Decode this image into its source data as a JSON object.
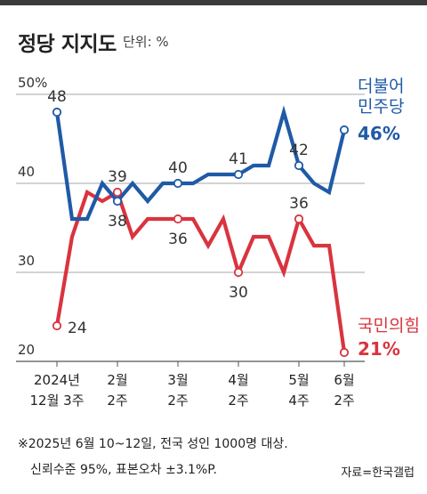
{
  "header": {
    "title": "정당 지지도",
    "unit": "단위: %"
  },
  "footnote": {
    "line1": "※2025년 6월 10~12일, 전국 성인 1000명 대상.",
    "line2": "신뢰수준 95%, 표본오차 ±3.1%P."
  },
  "source": "자료=한국갤럽",
  "colors": {
    "democratic": "#1f5aa6",
    "ppp": "#d9343e",
    "grid": "#8a8a8a"
  },
  "chart_data": {
    "type": "line",
    "ylim": [
      20,
      50
    ],
    "yticks": [
      {
        "value": 50,
        "label": "50%"
      },
      {
        "value": 40,
        "label": "40"
      },
      {
        "value": 30,
        "label": "30"
      },
      {
        "value": 20,
        "label": "20"
      }
    ],
    "xticks": [
      {
        "index": 0,
        "lines": [
          "2024년",
          "12월 3주"
        ]
      },
      {
        "index": 4,
        "lines": [
          "2월",
          "2주"
        ]
      },
      {
        "index": 8,
        "lines": [
          "3월",
          "2주"
        ]
      },
      {
        "index": 12,
        "lines": [
          "4월",
          "2주"
        ]
      },
      {
        "index": 16,
        "lines": [
          "5월",
          "4주"
        ]
      },
      {
        "index": 19,
        "lines": [
          "6월",
          "2주"
        ]
      }
    ],
    "series": [
      {
        "name": "더불어 민주당",
        "name_lines": [
          "더불어",
          "민주당"
        ],
        "end_label": "46%",
        "color": "#1f5aa6",
        "values": [
          48,
          36,
          36,
          40,
          38,
          40,
          38,
          40,
          40,
          40,
          41,
          41,
          41,
          42,
          42,
          48,
          42,
          40,
          39,
          46
        ],
        "labels": [
          {
            "index": 0,
            "text": "48",
            "pos": "above"
          },
          {
            "index": 4,
            "text": "38",
            "pos": "below"
          },
          {
            "index": 8,
            "text": "40",
            "pos": "above"
          },
          {
            "index": 12,
            "text": "41",
            "pos": "above"
          },
          {
            "index": 16,
            "text": "42",
            "pos": "above"
          }
        ],
        "markers": [
          0,
          4,
          8,
          12,
          16,
          19
        ]
      },
      {
        "name": "국민의힘",
        "name_lines": [
          "국민의힘"
        ],
        "end_label": "21%",
        "color": "#d9343e",
        "values": [
          24,
          34,
          39,
          38,
          39,
          34,
          36,
          36,
          36,
          36,
          33,
          36,
          30,
          34,
          34,
          30,
          36,
          33,
          33,
          21
        ],
        "labels": [
          {
            "index": 0,
            "text": "24",
            "pos": "right"
          },
          {
            "index": 4,
            "text": "39",
            "pos": "above"
          },
          {
            "index": 8,
            "text": "36",
            "pos": "below"
          },
          {
            "index": 12,
            "text": "30",
            "pos": "below"
          },
          {
            "index": 16,
            "text": "36",
            "pos": "above"
          }
        ],
        "markers": [
          0,
          4,
          8,
          12,
          16,
          19
        ]
      }
    ]
  }
}
